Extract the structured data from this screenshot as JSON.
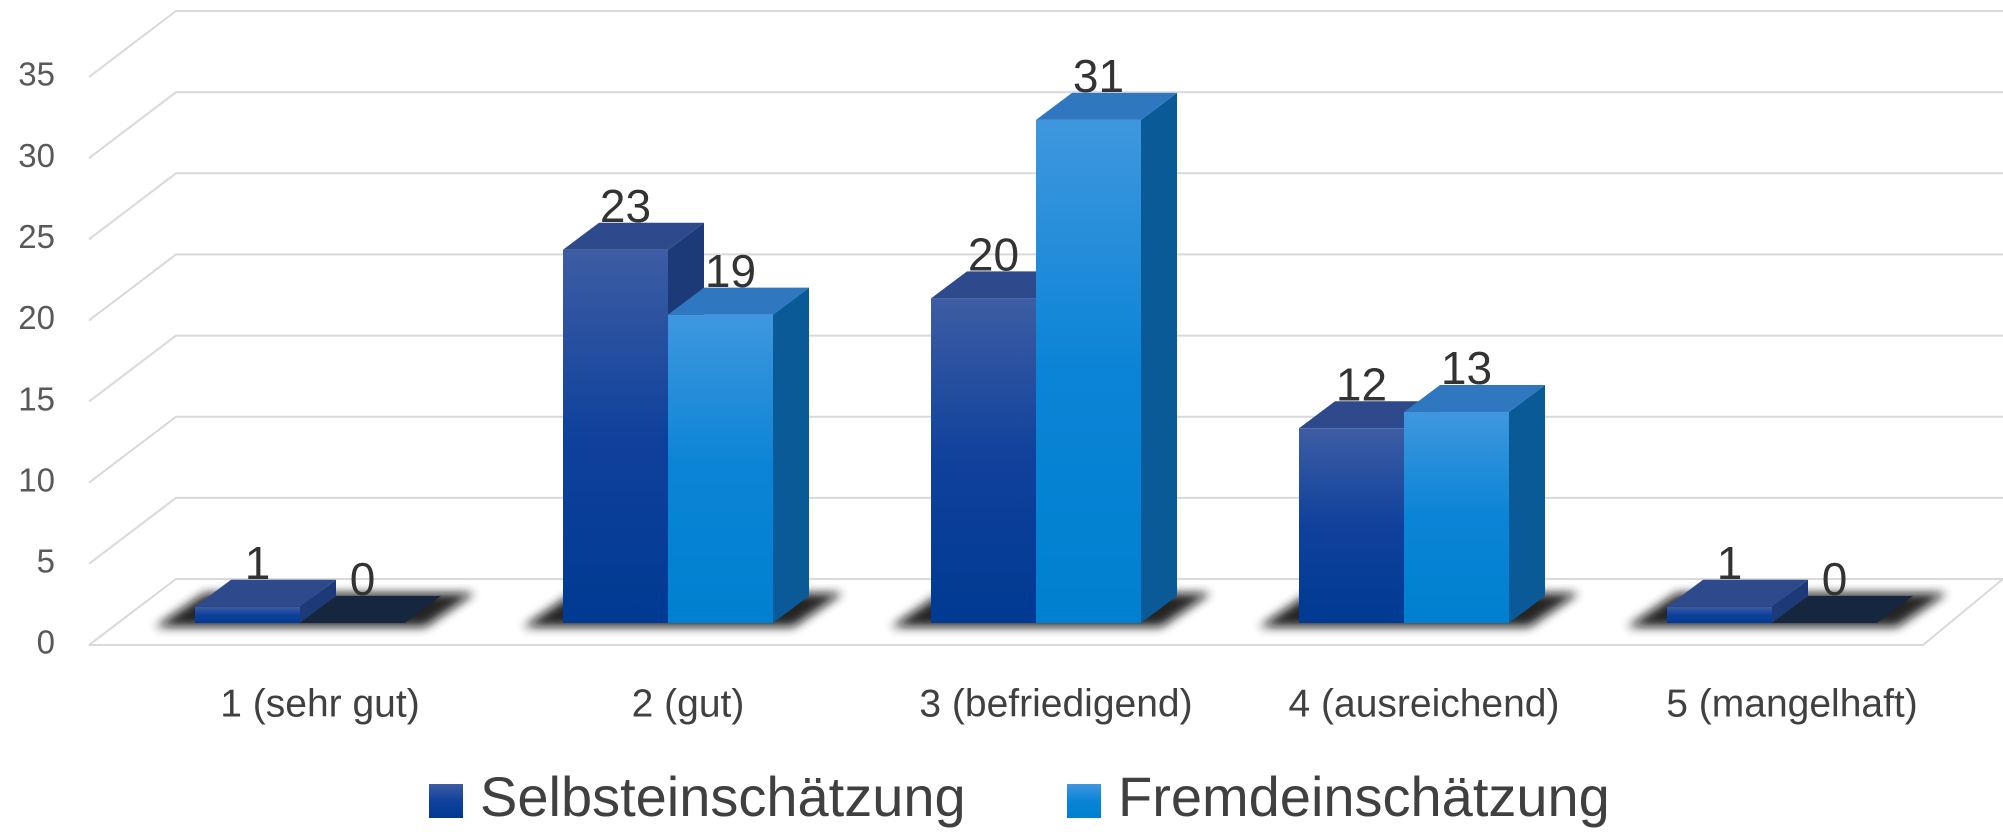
{
  "chart_data": {
    "type": "bar3d",
    "categories": [
      "1 (sehr gut)",
      "2 (gut)",
      "3 (befriedigend)",
      "4 (ausreichend)",
      "5 (mangelhaft)"
    ],
    "series": [
      {
        "name": "Selbsteinschätzung",
        "color": "#1f4493",
        "values": [
          1,
          23,
          20,
          12,
          1
        ]
      },
      {
        "name": "Fremdeinschätzung",
        "color": "#1287d8",
        "values": [
          0,
          19,
          31,
          13,
          0
        ]
      }
    ],
    "ylim": [
      0,
      35
    ],
    "yticks": [
      0,
      5,
      10,
      15,
      20,
      25,
      30,
      35
    ],
    "grid": true,
    "legend": "bottom"
  }
}
